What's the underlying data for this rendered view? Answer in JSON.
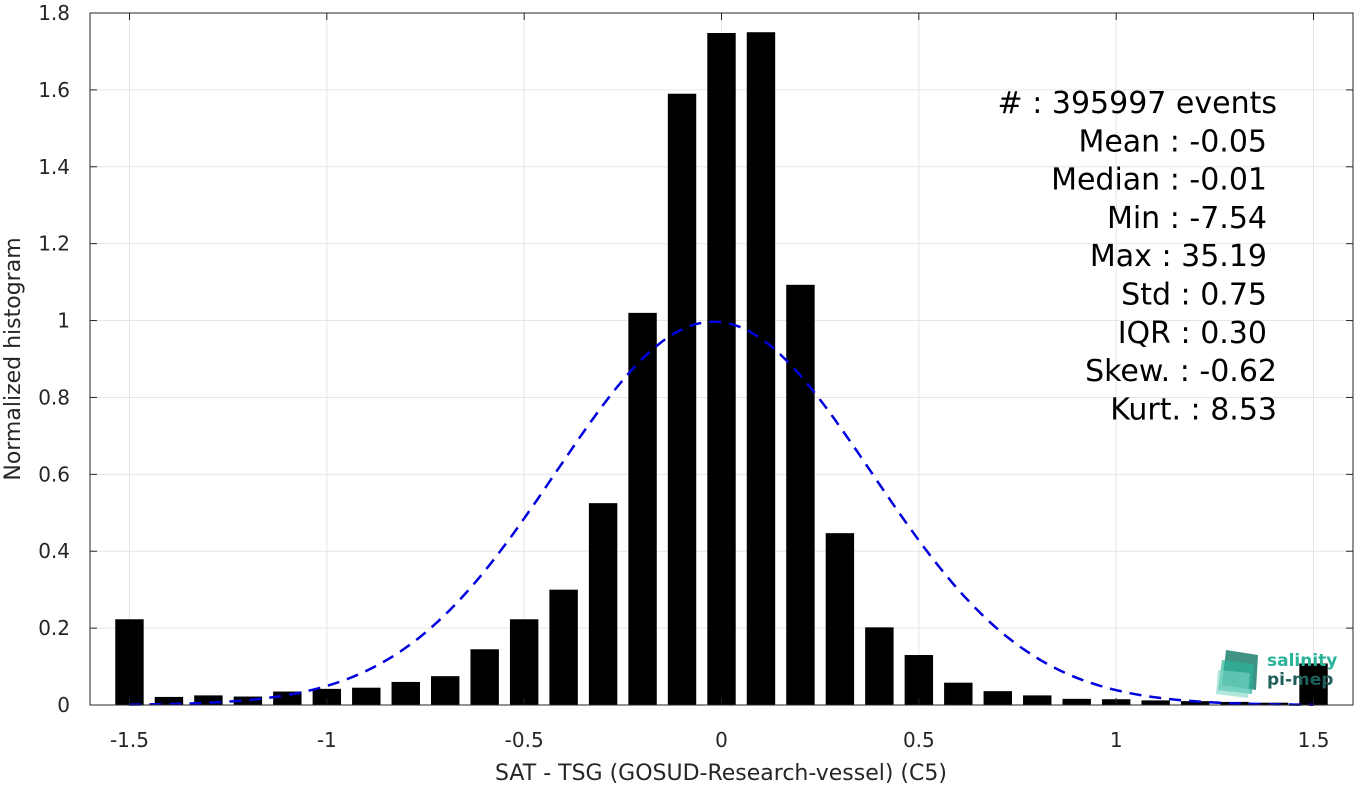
{
  "chart_data": {
    "type": "bar",
    "xlabel": "SAT - TSG (GOSUD-Research-vessel) (C5)",
    "ylabel": "Normalized histogram",
    "xlim": [
      -1.6,
      1.6
    ],
    "ylim": [
      0,
      1.8
    ],
    "xticks": [
      -1.5,
      -1,
      -0.5,
      0,
      0.5,
      1,
      1.5
    ],
    "xtick_labels": [
      "-1.5",
      "-1",
      "-0.5",
      "0",
      "0.5",
      "1",
      "1.5"
    ],
    "yticks": [
      0,
      0.2,
      0.4,
      0.6,
      0.8,
      1,
      1.2,
      1.4,
      1.6,
      1.8
    ],
    "ytick_labels": [
      "0",
      "0.2",
      "0.4",
      "0.6",
      "0.8",
      "1",
      "1.2",
      "1.4",
      "1.6",
      "1.8"
    ],
    "grid": true,
    "bin_width": 0.1,
    "bars": [
      {
        "x": -1.5,
        "y": 0.223
      },
      {
        "x": -1.4,
        "y": 0.021
      },
      {
        "x": -1.3,
        "y": 0.025
      },
      {
        "x": -1.2,
        "y": 0.022
      },
      {
        "x": -1.1,
        "y": 0.035
      },
      {
        "x": -1.0,
        "y": 0.042
      },
      {
        "x": -0.9,
        "y": 0.045
      },
      {
        "x": -0.8,
        "y": 0.06
      },
      {
        "x": -0.7,
        "y": 0.075
      },
      {
        "x": -0.6,
        "y": 0.145
      },
      {
        "x": -0.5,
        "y": 0.223
      },
      {
        "x": -0.4,
        "y": 0.3
      },
      {
        "x": -0.3,
        "y": 0.525
      },
      {
        "x": -0.2,
        "y": 1.02
      },
      {
        "x": -0.1,
        "y": 1.59
      },
      {
        "x": 0.0,
        "y": 1.748
      },
      {
        "x": 0.1,
        "y": 1.75
      },
      {
        "x": 0.2,
        "y": 1.093
      },
      {
        "x": 0.3,
        "y": 0.447
      },
      {
        "x": 0.4,
        "y": 0.202
      },
      {
        "x": 0.5,
        "y": 0.13
      },
      {
        "x": 0.6,
        "y": 0.058
      },
      {
        "x": 0.7,
        "y": 0.036
      },
      {
        "x": 0.8,
        "y": 0.025
      },
      {
        "x": 0.9,
        "y": 0.016
      },
      {
        "x": 1.0,
        "y": 0.015
      },
      {
        "x": 1.1,
        "y": 0.012
      },
      {
        "x": 1.2,
        "y": 0.01
      },
      {
        "x": 1.3,
        "y": 0.008
      },
      {
        "x": 1.4,
        "y": 0.006
      },
      {
        "x": 1.5,
        "y": 0.108
      }
    ],
    "fit_curve": {
      "style": "dashed",
      "color": "#0000dd",
      "mean": -0.02,
      "std": 0.4,
      "peak": 0.997,
      "x_range": [
        -1.5,
        1.5
      ]
    },
    "bar_color": "#000000",
    "stats": [
      {
        "label": "#  : 395997 events"
      },
      {
        "label": "Mean : -0.05"
      },
      {
        "label": "Median : -0.01"
      },
      {
        "label": "Min : -7.54"
      },
      {
        "label": "Max : 35.19"
      },
      {
        "label": "Std : 0.75"
      },
      {
        "label": "IQR : 0.30"
      },
      {
        "label": "Skew. : -0.62"
      },
      {
        "label": "Kurt. : 8.53"
      }
    ]
  },
  "logo": {
    "line1": "salinity",
    "line2": "pi-mep",
    "color_teal": "#2bb39a",
    "color_dark": "#1f5f5a"
  }
}
